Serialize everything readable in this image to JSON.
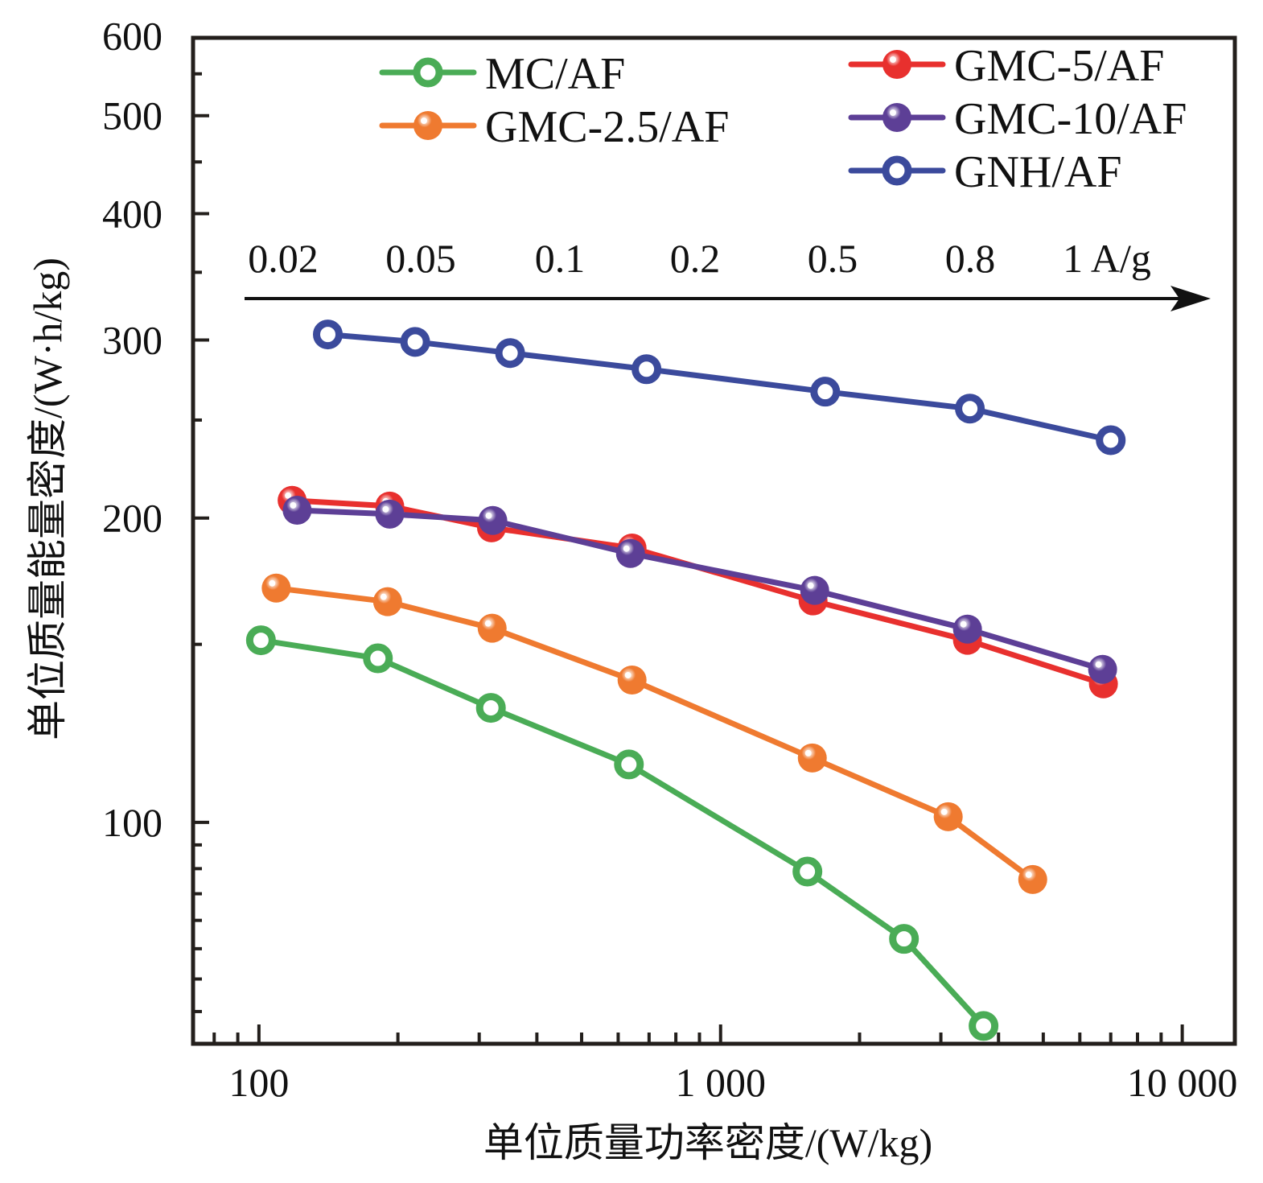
{
  "chart_data": {
    "type": "line",
    "title": "",
    "xlabel": "单位质量功率密度/(W/kg)",
    "ylabel": "单位质量能量密度/(W·h/kg)",
    "xscale": "log",
    "yscale": "log",
    "xlim": [
      72,
      13000
    ],
    "ylim": [
      60.4,
      597
    ],
    "grid": false,
    "legend_position": "top",
    "x_ticks": [
      {
        "value": 100,
        "label": "100"
      },
      {
        "value": 1000,
        "label": "1 000"
      },
      {
        "value": 10000,
        "label": "10 000"
      }
    ],
    "y_ticks": [
      {
        "value": 100,
        "label": "100"
      },
      {
        "value": 200,
        "label": "200"
      },
      {
        "value": 300,
        "label": "300"
      },
      {
        "value": 400,
        "label": "400"
      },
      {
        "value": 500,
        "label": "500"
      },
      {
        "value": 600,
        "label": "600"
      }
    ],
    "annotation": {
      "text": "current density arrow",
      "labels": [
        "0.02",
        "0.05",
        "0.1",
        "0.2",
        "0.5",
        "0.8",
        "1 A/g"
      ]
    },
    "series": [
      {
        "name": "MC/AF",
        "color": "#4aac56",
        "marker": "hollow",
        "legend_column": 0,
        "x": [
          101,
          181,
          318,
          633,
          1542,
          2496,
          3712
        ],
        "y": [
          151.4,
          145.3,
          129.8,
          114.1,
          89.4,
          76.7,
          62.9
        ]
      },
      {
        "name": "GMC-2.5/AF",
        "color": "#ef7a30",
        "marker": "filled",
        "legend_column": 0,
        "x": [
          109,
          190,
          320,
          643,
          1580,
          3112,
          4744
        ],
        "y": [
          170.5,
          165.3,
          155.6,
          138.3,
          115.8,
          101.3,
          87.8
        ]
      },
      {
        "name": "GMC-5/AF",
        "color": "#e8302e",
        "marker": "filled",
        "legend_column": 1,
        "x": [
          118,
          192,
          319,
          643,
          1586,
          3426,
          6749
        ],
        "y": [
          208.2,
          205.5,
          195.6,
          186.8,
          165.6,
          151.4,
          137.1
        ]
      },
      {
        "name": "GMC-10/AF",
        "color": "#5d3f96",
        "marker": "filled",
        "legend_column": 1,
        "x": [
          121,
          192,
          321,
          638,
          1599,
          3426,
          6722
        ],
        "y": [
          203.6,
          201.8,
          198.9,
          184.5,
          169.6,
          155.3,
          141.7
        ]
      },
      {
        "name": "GNH/AF",
        "color": "#3b4a9c",
        "marker": "hollow",
        "legend_column": 1,
        "x": [
          141,
          218,
          350,
          691,
          1685,
          3467,
          7000
        ],
        "y": [
          303.8,
          298.7,
          291.2,
          280.7,
          266.7,
          256.6,
          238.8
        ]
      }
    ]
  }
}
